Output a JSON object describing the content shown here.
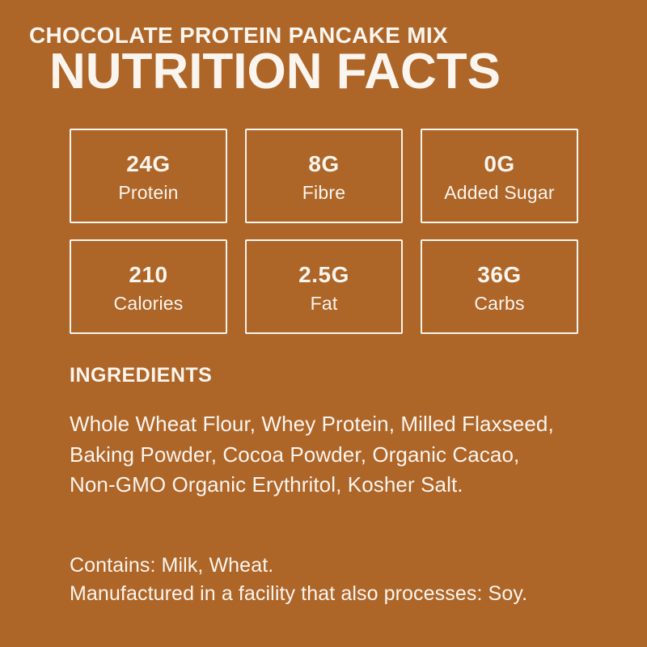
{
  "colors": {
    "background": "#AE6528",
    "foreground": "#FAF5EE"
  },
  "header": {
    "subtitle": "CHOCOLATE PROTEIN PANCAKE MIX",
    "title": "NUTRITION FACTS"
  },
  "nutrition_boxes": [
    {
      "value": "24G",
      "label": "Protein"
    },
    {
      "value": "8G",
      "label": "Fibre"
    },
    {
      "value": "0G",
      "label": "Added Sugar"
    },
    {
      "value": "210",
      "label": "Calories"
    },
    {
      "value": "2.5G",
      "label": "Fat"
    },
    {
      "value": "36G",
      "label": "Carbs"
    }
  ],
  "ingredients": {
    "heading": "INGREDIENTS",
    "text": "Whole Wheat Flour, Whey Protein, Milled Flaxseed,\nBaking Powder, Cocoa Powder, Organic Cacao,\nNon-GMO Organic Erythritol, Kosher Salt."
  },
  "allergens": {
    "contains": "Contains: Milk, Wheat.",
    "facility": "Manufactured in a facility that also processes: Soy."
  }
}
